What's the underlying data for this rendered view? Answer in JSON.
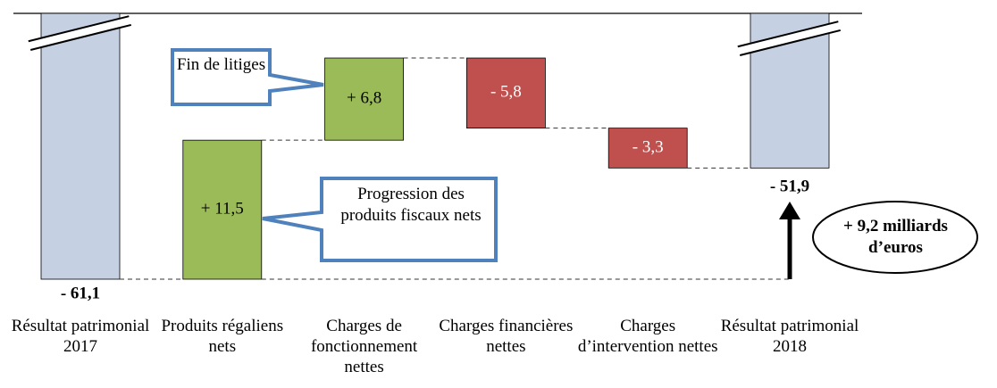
{
  "chart_data": {
    "type": "waterfall",
    "categories": [
      "Résultat patrimonial 2017",
      "Produits régaliens nets",
      "Charges de fonctionnement nettes",
      "Charges financières nettes",
      "Charges d’intervention nettes",
      "Résultat patrimonial 2018"
    ],
    "values": [
      -61.1,
      11.5,
      6.8,
      -5.8,
      -3.3,
      -51.9
    ],
    "value_labels": [
      "- 61,1",
      "+ 11,5",
      "+ 6,8",
      "- 5,8",
      "- 3,3",
      "- 51,9"
    ],
    "colors": {
      "total": "#c5d0e2",
      "increase": "#9bbb59",
      "decrease": "#c0504d"
    },
    "annotations": [
      "Fin de litiges",
      "Progression des produits fiscaux nets",
      "+ 9,2 milliards d’euros"
    ]
  }
}
